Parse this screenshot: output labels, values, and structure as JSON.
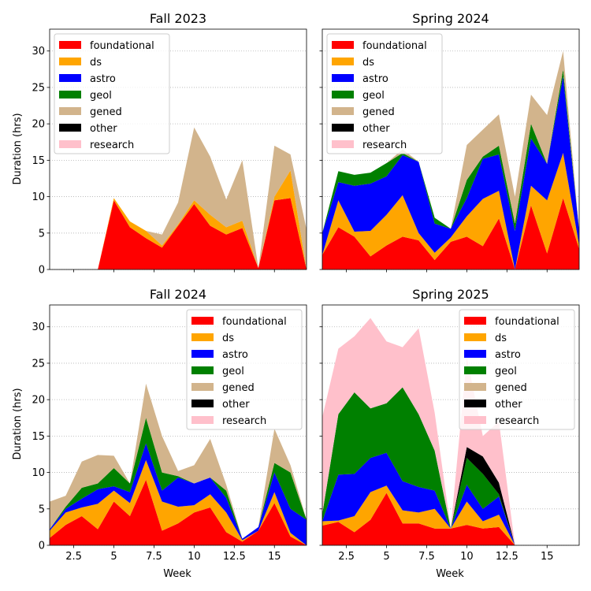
{
  "figure": {
    "ylabel": "Duration (hrs)",
    "xlabel": "Week"
  },
  "chart_data": [
    {
      "type": "area",
      "title": "Fall 2023",
      "xlim": [
        1,
        17
      ],
      "ylim": [
        0,
        33
      ],
      "xticks": [
        2.5,
        5.0,
        7.5,
        10.0,
        12.5,
        15.0
      ],
      "yticks": [
        0,
        5,
        10,
        15,
        20,
        25,
        30
      ],
      "show_xticklabels": false,
      "show_yticklabels": true,
      "xlabel": "",
      "ylabel": "Duration (hrs)",
      "grid": "y-dotted",
      "legend": "upper left",
      "x": [
        1,
        2,
        3,
        4,
        5,
        6,
        7,
        8,
        9,
        10,
        11,
        12,
        13,
        14,
        15,
        16,
        17
      ],
      "series": [
        {
          "name": "foundational",
          "color": "#ff0000",
          "values": [
            0,
            0,
            0,
            0,
            9.5,
            5.8,
            4.3,
            3.0,
            6.0,
            9.0,
            6.0,
            4.8,
            5.7,
            0.2,
            9.5,
            9.8,
            0
          ]
        },
        {
          "name": "ds",
          "color": "#ffa500",
          "values": [
            0,
            0,
            0,
            0,
            0.3,
            0.8,
            1.0,
            0.3,
            0.2,
            0.5,
            1.5,
            1.0,
            1.0,
            0,
            0.5,
            3.8,
            0
          ]
        },
        {
          "name": "astro",
          "color": "#0000ff",
          "values": [
            0,
            0,
            0,
            0,
            0,
            0,
            0,
            0,
            0,
            0,
            0,
            0,
            0,
            0,
            0,
            0,
            0
          ]
        },
        {
          "name": "geol",
          "color": "#008000",
          "values": [
            0,
            0,
            0,
            0,
            0,
            0,
            0,
            0,
            0,
            0,
            0,
            0,
            0,
            0,
            0,
            0,
            0
          ]
        },
        {
          "name": "gened",
          "color": "#d2b48c",
          "values": [
            0,
            0,
            0,
            0,
            0,
            0,
            0,
            1.5,
            3.0,
            10.0,
            8.0,
            3.8,
            8.3,
            0,
            7.0,
            2.2,
            5.5
          ]
        },
        {
          "name": "other",
          "color": "#000000",
          "values": [
            0,
            0,
            0,
            0,
            0,
            0,
            0,
            0,
            0,
            0,
            0,
            0,
            0,
            0,
            0,
            0,
            0
          ]
        },
        {
          "name": "research",
          "color": "#ffc0cb",
          "values": [
            0,
            0,
            0,
            0,
            0,
            0,
            0,
            0,
            0,
            0,
            0,
            0,
            0,
            0,
            0,
            0,
            0
          ]
        }
      ]
    },
    {
      "type": "area",
      "title": "Spring 2024",
      "xlim": [
        1,
        17
      ],
      "ylim": [
        0,
        33
      ],
      "xticks": [
        2.5,
        5.0,
        7.5,
        10.0,
        12.5,
        15.0
      ],
      "yticks": [
        0,
        5,
        10,
        15,
        20,
        25,
        30
      ],
      "show_xticklabels": false,
      "show_yticklabels": false,
      "xlabel": "",
      "ylabel": "",
      "grid": "y-dotted",
      "legend": "upper left",
      "x": [
        1,
        2,
        3,
        4,
        5,
        6,
        7,
        8,
        9,
        10,
        11,
        12,
        13,
        14,
        15,
        16,
        17
      ],
      "series": [
        {
          "name": "foundational",
          "color": "#ff0000",
          "values": [
            2.0,
            5.8,
            4.5,
            1.8,
            3.3,
            4.5,
            4.0,
            1.3,
            3.8,
            4.5,
            3.2,
            7.0,
            0,
            8.8,
            2.2,
            9.8,
            2.8
          ]
        },
        {
          "name": "ds",
          "color": "#ffa500",
          "values": [
            0,
            3.7,
            0.7,
            3.5,
            4.2,
            5.7,
            1.0,
            1.0,
            0.6,
            2.8,
            6.5,
            3.8,
            0,
            2.7,
            7.3,
            6.2,
            0.5
          ]
        },
        {
          "name": "astro",
          "color": "#0000ff",
          "values": [
            3.0,
            2.5,
            6.3,
            6.5,
            5.3,
            5.5,
            9.8,
            4.0,
            1.2,
            2.5,
            5.5,
            5.0,
            5.3,
            6.5,
            5.0,
            10.5,
            2.0
          ]
        },
        {
          "name": "geol",
          "color": "#008000",
          "values": [
            0,
            1.5,
            1.5,
            1.5,
            1.8,
            0.3,
            0,
            0.8,
            0,
            2.5,
            0.3,
            1.2,
            1.0,
            2.0,
            0,
            1.0,
            0
          ]
        },
        {
          "name": "gened",
          "color": "#d2b48c",
          "values": [
            0,
            0,
            0,
            0,
            0,
            0.5,
            0,
            0,
            0,
            4.8,
            3.7,
            4.3,
            3.7,
            4.0,
            6.7,
            2.5,
            0
          ]
        },
        {
          "name": "other",
          "color": "#000000",
          "values": [
            0,
            0,
            0,
            0,
            0,
            0,
            0,
            0,
            0,
            0,
            0,
            0,
            0,
            0,
            0,
            0,
            0
          ]
        },
        {
          "name": "research",
          "color": "#ffc0cb",
          "values": [
            0,
            0,
            0,
            0,
            0,
            0,
            0,
            0,
            0,
            0,
            0,
            0,
            0,
            0,
            0,
            0,
            0
          ]
        }
      ]
    },
    {
      "type": "area",
      "title": "Fall 2024",
      "xlim": [
        1,
        17
      ],
      "ylim": [
        0,
        33
      ],
      "xticks": [
        2.5,
        5.0,
        7.5,
        10.0,
        12.5,
        15.0
      ],
      "yticks": [
        0,
        5,
        10,
        15,
        20,
        25,
        30
      ],
      "show_xticklabels": true,
      "show_yticklabels": true,
      "xlabel": "Week",
      "ylabel": "Duration (hrs)",
      "grid": "y-dotted",
      "legend": "upper right",
      "x": [
        1,
        2,
        3,
        4,
        5,
        6,
        7,
        8,
        9,
        10,
        11,
        12,
        13,
        14,
        15,
        16,
        17
      ],
      "series": [
        {
          "name": "foundational",
          "color": "#ff0000",
          "values": [
            1.0,
            2.8,
            4.0,
            2.2,
            6.0,
            4.0,
            9.0,
            2.0,
            3.0,
            4.5,
            5.2,
            1.8,
            0.5,
            2.0,
            5.8,
            1.2,
            0
          ]
        },
        {
          "name": "ds",
          "color": "#ffa500",
          "values": [
            1.0,
            1.7,
            1.2,
            3.5,
            1.5,
            1.8,
            2.7,
            4.0,
            2.3,
            1.0,
            1.8,
            2.7,
            0.2,
            0,
            1.5,
            0.5,
            0
          ]
        },
        {
          "name": "astro",
          "color": "#0000ff",
          "values": [
            0.2,
            0.5,
            1.2,
            2.0,
            0.6,
            1.5,
            2.3,
            1.5,
            4.0,
            3.0,
            2.3,
            2.0,
            0.2,
            0.5,
            2.7,
            3.3,
            3.5
          ]
        },
        {
          "name": "geol",
          "color": "#008000",
          "values": [
            0,
            0.3,
            1.5,
            0.8,
            2.5,
            1.2,
            3.5,
            2.5,
            0.2,
            0,
            0,
            1.0,
            0,
            0,
            1.3,
            5.0,
            0
          ]
        },
        {
          "name": "gened",
          "color": "#d2b48c",
          "values": [
            3.8,
            1.5,
            3.6,
            3.9,
            1.7,
            0,
            4.7,
            5.0,
            0.7,
            2.5,
            5.3,
            0.8,
            0,
            0,
            4.7,
            1.0,
            0
          ]
        },
        {
          "name": "other",
          "color": "#000000",
          "values": [
            0,
            0,
            0,
            0,
            0,
            0,
            0,
            0,
            0,
            0,
            0,
            0,
            0,
            0,
            0,
            0,
            0
          ]
        },
        {
          "name": "research",
          "color": "#ffc0cb",
          "values": [
            0,
            0,
            0,
            0,
            0,
            0,
            0,
            0,
            0,
            0,
            0,
            0,
            0,
            0,
            0,
            0,
            0
          ]
        }
      ]
    },
    {
      "type": "area",
      "title": "Spring 2025",
      "xlim": [
        1,
        17
      ],
      "ylim": [
        0,
        33
      ],
      "xticks": [
        2.5,
        5.0,
        7.5,
        10.0,
        12.5,
        15.0
      ],
      "yticks": [
        0,
        5,
        10,
        15,
        20,
        25,
        30
      ],
      "show_xticklabels": true,
      "show_yticklabels": false,
      "xlabel": "Week",
      "ylabel": "",
      "grid": "y-dotted",
      "legend": "upper right",
      "x": [
        1,
        2,
        3,
        4,
        5,
        6,
        7,
        8,
        9,
        10,
        11,
        12,
        13
      ],
      "series": [
        {
          "name": "foundational",
          "color": "#ff0000",
          "values": [
            2.7,
            3.2,
            1.8,
            3.5,
            7.2,
            3.0,
            3.0,
            2.3,
            2.3,
            2.8,
            2.3,
            2.5,
            0
          ]
        },
        {
          "name": "ds",
          "color": "#ffa500",
          "values": [
            0.6,
            0.2,
            2.2,
            3.8,
            1.0,
            1.8,
            1.5,
            2.7,
            0,
            3.2,
            1.0,
            1.7,
            0
          ]
        },
        {
          "name": "astro",
          "color": "#0000ff",
          "values": [
            0,
            6.3,
            5.8,
            4.7,
            4.5,
            4.0,
            3.5,
            2.5,
            0,
            2.3,
            1.7,
            2.5,
            0
          ]
        },
        {
          "name": "geol",
          "color": "#008000",
          "values": [
            1.0,
            8.3,
            11.2,
            6.8,
            6.8,
            12.9,
            10.0,
            5.5,
            0,
            3.7,
            4.8,
            0.3,
            0
          ]
        },
        {
          "name": "gened",
          "color": "#d2b48c",
          "values": [
            0,
            0,
            0,
            0,
            0,
            0,
            0,
            0,
            0,
            0,
            0,
            0,
            0
          ]
        },
        {
          "name": "other",
          "color": "#000000",
          "values": [
            0,
            0,
            0,
            0,
            0,
            0,
            0,
            0,
            0,
            1.5,
            2.4,
            1.6,
            0
          ]
        },
        {
          "name": "research",
          "color": "#ffc0cb",
          "values": [
            13.3,
            9.0,
            7.7,
            12.4,
            8.5,
            5.5,
            11.8,
            5.2,
            0,
            12.3,
            2.8,
            8.4,
            0
          ]
        }
      ]
    }
  ]
}
